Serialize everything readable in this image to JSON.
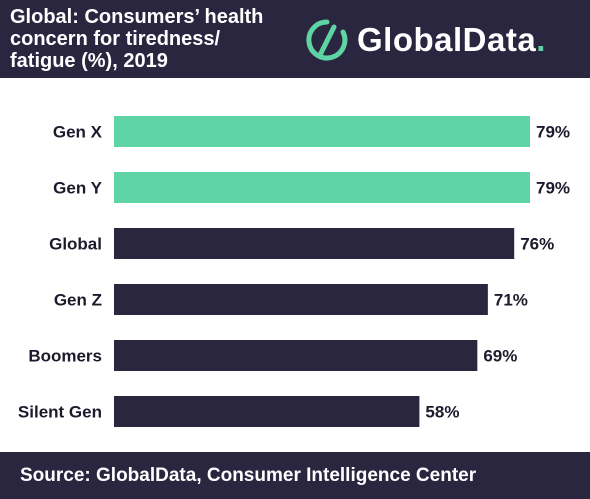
{
  "header": {
    "title_lines": [
      "Global: Consumers’ health",
      "concern for tiredness/",
      "fatigue (%), 2019"
    ],
    "logo_text": "GlobalData",
    "logo_dot": "."
  },
  "footer": {
    "source": "Source:  GlobalData, Consumer Intelligence Center"
  },
  "colors": {
    "header_bg": "#2b2640",
    "bar_highlight": "#5ed3a3",
    "bar_default": "#2b2640"
  },
  "chart_data": {
    "type": "bar",
    "orientation": "horizontal",
    "categories": [
      "Gen X",
      "Gen Y",
      "Global",
      "Gen Z",
      "Boomers",
      "Silent Gen"
    ],
    "values": [
      79,
      79,
      76,
      71,
      69,
      58
    ],
    "value_labels": [
      "79%",
      "79%",
      "76%",
      "71%",
      "69%",
      "58%"
    ],
    "highlighted": [
      true,
      true,
      false,
      false,
      false,
      false
    ],
    "xlim": [
      0,
      100
    ],
    "grid": false,
    "legend": "none"
  }
}
